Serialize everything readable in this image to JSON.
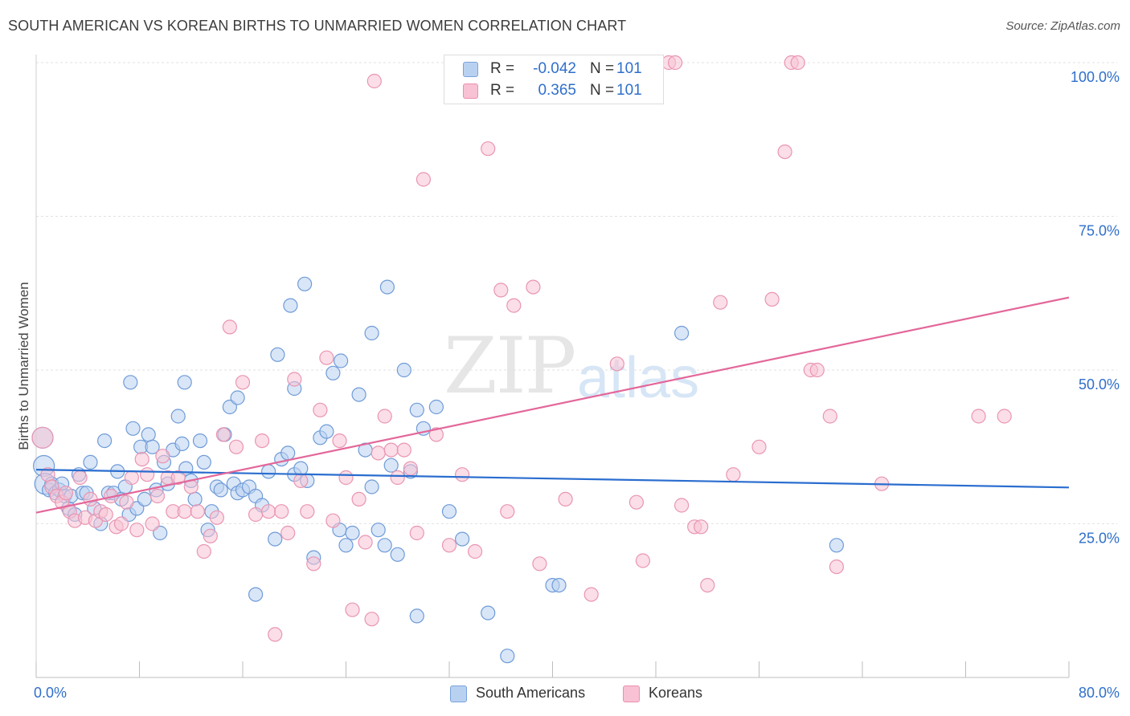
{
  "title": "SOUTH AMERICAN VS KOREAN BIRTHS TO UNMARRIED WOMEN CORRELATION CHART",
  "source": "Source: ZipAtlas.com",
  "watermark": {
    "zip": "ZIP",
    "atlas": "atlas"
  },
  "legend": {
    "r_label": "R =",
    "n_label": "N =",
    "rows": [
      {
        "name": "South Americans",
        "r": "-0.042",
        "n": "101",
        "color": "#2f6fcb"
      },
      {
        "name": "Koreans",
        "r": "0.365",
        "n": "101",
        "color": "#e3679a"
      }
    ]
  },
  "chart_data": {
    "type": "scatter",
    "title": "SOUTH AMERICAN VS KOREAN BIRTHS TO UNMARRIED WOMEN CORRELATION CHART",
    "xlabel": "",
    "ylabel": "Births to Unmarried Women",
    "xlim": [
      0,
      80
    ],
    "ylim": [
      0,
      100
    ],
    "x_ticks_labels": [
      "0.0%",
      "80.0%"
    ],
    "y_ticks": [
      25,
      50,
      75,
      100
    ],
    "y_tick_labels": [
      "25.0%",
      "50.0%",
      "75.0%",
      "100.0%"
    ],
    "grid": true,
    "series": [
      {
        "name": "South Americans",
        "fill": "#b9d1f1",
        "stroke": "#6f9bd8",
        "trend": {
          "x": [
            0,
            80
          ],
          "y": [
            33.8,
            30.9
          ],
          "color": "#2a6dcf"
        },
        "points": [
          [
            0.5,
            39.0
          ],
          [
            0.6,
            34.4
          ],
          [
            0.7,
            31.5
          ],
          [
            1.0,
            30.5
          ],
          [
            1.2,
            31.5
          ],
          [
            1.5,
            30.0
          ],
          [
            1.8,
            30.5
          ],
          [
            2.0,
            31.5
          ],
          [
            2.2,
            29.5
          ],
          [
            2.5,
            27.5
          ],
          [
            2.7,
            29.5
          ],
          [
            3.0,
            26.5
          ],
          [
            3.3,
            33.0
          ],
          [
            3.6,
            30.0
          ],
          [
            3.9,
            30.0
          ],
          [
            4.2,
            35.0
          ],
          [
            4.5,
            27.5
          ],
          [
            5.0,
            25.0
          ],
          [
            5.3,
            38.5
          ],
          [
            5.6,
            30.0
          ],
          [
            6.0,
            30.0
          ],
          [
            6.3,
            33.5
          ],
          [
            6.6,
            29.0
          ],
          [
            6.9,
            31.0
          ],
          [
            7.2,
            26.5
          ],
          [
            7.5,
            40.5
          ],
          [
            7.8,
            27.5
          ],
          [
            8.1,
            37.5
          ],
          [
            8.4,
            29.0
          ],
          [
            8.7,
            39.5
          ],
          [
            9.0,
            37.5
          ],
          [
            9.3,
            30.5
          ],
          [
            9.6,
            23.5
          ],
          [
            9.9,
            35.0
          ],
          [
            10.2,
            31.5
          ],
          [
            10.6,
            37.0
          ],
          [
            11.0,
            42.5
          ],
          [
            11.3,
            38.0
          ],
          [
            11.6,
            34.0
          ],
          [
            12.0,
            32.0
          ],
          [
            12.3,
            29.0
          ],
          [
            12.7,
            38.5
          ],
          [
            13.0,
            35.0
          ],
          [
            13.3,
            24.0
          ],
          [
            13.6,
            27.0
          ],
          [
            14.0,
            31.0
          ],
          [
            14.3,
            30.5
          ],
          [
            14.6,
            39.5
          ],
          [
            15.0,
            44.0
          ],
          [
            15.3,
            31.5
          ],
          [
            15.6,
            30.0
          ],
          [
            16.0,
            30.5
          ],
          [
            16.5,
            31.0
          ],
          [
            17.0,
            29.5
          ],
          [
            17.5,
            28.0
          ],
          [
            18.0,
            33.5
          ],
          [
            18.5,
            22.5
          ],
          [
            19.0,
            35.5
          ],
          [
            19.5,
            36.5
          ],
          [
            20.0,
            33.0
          ],
          [
            20.5,
            34.0
          ],
          [
            21.0,
            32.0
          ],
          [
            21.5,
            19.5
          ],
          [
            22.0,
            39.0
          ],
          [
            22.5,
            40.0
          ],
          [
            23.0,
            49.5
          ],
          [
            23.5,
            24.0
          ],
          [
            24.0,
            21.5
          ],
          [
            24.5,
            23.5
          ],
          [
            25.0,
            46.0
          ],
          [
            25.5,
            37.0
          ],
          [
            26.0,
            31.0
          ],
          [
            26.5,
            24.0
          ],
          [
            27.0,
            21.5
          ],
          [
            27.5,
            34.5
          ],
          [
            28.0,
            20.0
          ],
          [
            28.5,
            50.0
          ],
          [
            29.0,
            33.5
          ],
          [
            29.5,
            43.5
          ],
          [
            30.0,
            40.5
          ],
          [
            31.0,
            44.0
          ],
          [
            32.0,
            27.0
          ],
          [
            33.0,
            22.5
          ],
          [
            35.0,
            10.5
          ],
          [
            36.5,
            3.5
          ],
          [
            40.0,
            15.0
          ],
          [
            40.5,
            15.0
          ],
          [
            50.0,
            56.0
          ],
          [
            62.0,
            21.5
          ],
          [
            20.8,
            64.0
          ],
          [
            27.2,
            63.5
          ],
          [
            19.7,
            60.5
          ],
          [
            17.0,
            13.5
          ],
          [
            29.5,
            10.0
          ],
          [
            23.6,
            51.5
          ],
          [
            18.7,
            52.5
          ],
          [
            15.6,
            45.5
          ],
          [
            7.3,
            48.0
          ],
          [
            11.5,
            48.0
          ],
          [
            20.0,
            47.0
          ],
          [
            26.0,
            56.0
          ]
        ]
      },
      {
        "name": "Koreans",
        "fill": "#f8c2d4",
        "stroke": "#e995b3",
        "trend": {
          "x": [
            0,
            80
          ],
          "y": [
            26.8,
            61.8
          ],
          "color": "#e3679a"
        },
        "points": [
          [
            0.5,
            39.0
          ],
          [
            0.9,
            33.0
          ],
          [
            1.2,
            31.0
          ],
          [
            1.6,
            29.5
          ],
          [
            2.0,
            28.5
          ],
          [
            2.3,
            30.0
          ],
          [
            2.6,
            27.0
          ],
          [
            3.0,
            25.5
          ],
          [
            3.4,
            32.5
          ],
          [
            3.8,
            26.0
          ],
          [
            4.2,
            29.0
          ],
          [
            4.6,
            25.5
          ],
          [
            5.0,
            27.0
          ],
          [
            5.4,
            26.5
          ],
          [
            5.8,
            29.5
          ],
          [
            6.2,
            24.5
          ],
          [
            6.6,
            25.0
          ],
          [
            7.0,
            28.5
          ],
          [
            7.4,
            32.5
          ],
          [
            7.8,
            24.0
          ],
          [
            8.2,
            35.5
          ],
          [
            8.6,
            33.0
          ],
          [
            9.0,
            25.0
          ],
          [
            9.4,
            29.5
          ],
          [
            9.8,
            36.0
          ],
          [
            10.2,
            32.5
          ],
          [
            10.6,
            27.0
          ],
          [
            11.0,
            32.5
          ],
          [
            11.5,
            27.0
          ],
          [
            12.0,
            31.0
          ],
          [
            12.5,
            27.0
          ],
          [
            13.0,
            20.5
          ],
          [
            13.5,
            23.0
          ],
          [
            14.0,
            26.0
          ],
          [
            14.5,
            39.5
          ],
          [
            15.0,
            57.0
          ],
          [
            15.5,
            37.5
          ],
          [
            16.0,
            48.0
          ],
          [
            17.0,
            26.5
          ],
          [
            17.5,
            38.5
          ],
          [
            18.0,
            27.0
          ],
          [
            18.5,
            7.0
          ],
          [
            19.0,
            27.0
          ],
          [
            19.5,
            23.5
          ],
          [
            20.0,
            48.5
          ],
          [
            20.5,
            32.0
          ],
          [
            21.0,
            27.0
          ],
          [
            21.5,
            18.5
          ],
          [
            22.0,
            43.5
          ],
          [
            22.5,
            52.0
          ],
          [
            23.0,
            25.5
          ],
          [
            23.5,
            38.5
          ],
          [
            24.0,
            32.5
          ],
          [
            24.5,
            11.0
          ],
          [
            25.0,
            29.0
          ],
          [
            25.5,
            22.0
          ],
          [
            26.0,
            9.5
          ],
          [
            26.5,
            36.5
          ],
          [
            27.0,
            42.5
          ],
          [
            27.5,
            37.0
          ],
          [
            28.0,
            32.5
          ],
          [
            28.5,
            37.0
          ],
          [
            29.0,
            34.0
          ],
          [
            29.5,
            23.5
          ],
          [
            30.0,
            81.0
          ],
          [
            31.0,
            39.5
          ],
          [
            32.0,
            21.5
          ],
          [
            33.0,
            33.0
          ],
          [
            34.0,
            20.5
          ],
          [
            35.0,
            86.0
          ],
          [
            36.0,
            63.0
          ],
          [
            36.5,
            27.0
          ],
          [
            37.0,
            60.5
          ],
          [
            38.5,
            63.5
          ],
          [
            39.0,
            18.5
          ],
          [
            41.0,
            29.0
          ],
          [
            43.0,
            13.5
          ],
          [
            45.0,
            51.0
          ],
          [
            46.5,
            28.5
          ],
          [
            47.0,
            19.0
          ],
          [
            49.0,
            100.0
          ],
          [
            49.5,
            100.0
          ],
          [
            50.0,
            28.0
          ],
          [
            51.0,
            24.5
          ],
          [
            52.0,
            15.0
          ],
          [
            53.0,
            61.0
          ],
          [
            54.0,
            33.0
          ],
          [
            56.0,
            37.5
          ],
          [
            57.0,
            61.5
          ],
          [
            58.0,
            85.5
          ],
          [
            58.5,
            100.0
          ],
          [
            59.0,
            100.0
          ],
          [
            60.0,
            50.0
          ],
          [
            60.5,
            50.0
          ],
          [
            61.5,
            42.5
          ],
          [
            62.0,
            18.0
          ],
          [
            65.5,
            31.5
          ],
          [
            73.0,
            42.5
          ],
          [
            75.0,
            42.5
          ],
          [
            26.2,
            97.0
          ],
          [
            51.5,
            24.5
          ]
        ]
      }
    ]
  }
}
